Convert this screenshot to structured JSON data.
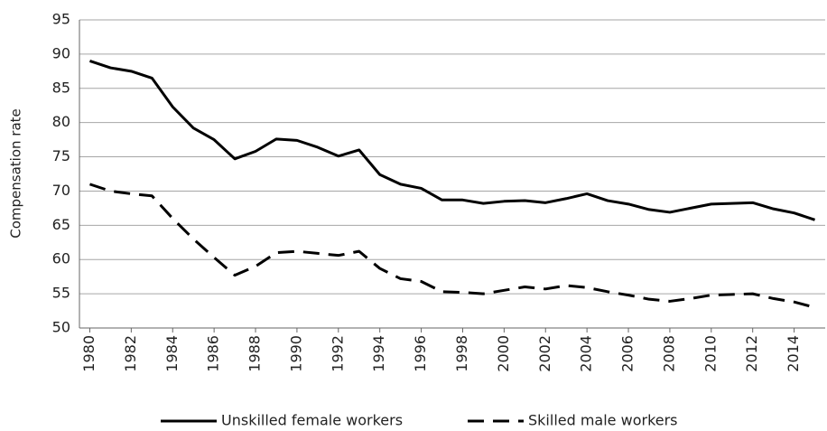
{
  "chart_data": {
    "type": "line",
    "y_label": "Compensation rate",
    "x": [
      1980,
      1981,
      1982,
      1983,
      1984,
      1985,
      1986,
      1987,
      1988,
      1989,
      1990,
      1991,
      1992,
      1993,
      1994,
      1995,
      1996,
      1997,
      1998,
      1999,
      2000,
      2001,
      2002,
      2003,
      2004,
      2005,
      2006,
      2007,
      2008,
      2009,
      2010,
      2011,
      2012,
      2013,
      2014,
      2015
    ],
    "series": [
      {
        "name": "Unskilled female workers",
        "color": "#000000",
        "style": "solid",
        "values": [
          89.0,
          88.0,
          87.5,
          86.5,
          82.3,
          79.2,
          77.5,
          74.7,
          75.8,
          77.6,
          77.4,
          76.4,
          75.1,
          76.0,
          72.4,
          71.0,
          70.4,
          68.7,
          68.7,
          68.2,
          68.5,
          68.6,
          68.3,
          68.9,
          69.6,
          68.6,
          68.1,
          67.3,
          66.9,
          67.5,
          68.1,
          68.2,
          68.3,
          67.4,
          66.8,
          65.8
        ]
      },
      {
        "name": "Skilled male workers",
        "color": "#000000",
        "style": "dashed",
        "values": [
          71.0,
          70.0,
          69.6,
          69.3,
          66.0,
          63.0,
          60.3,
          57.7,
          59.0,
          61.0,
          61.2,
          60.9,
          60.6,
          61.2,
          58.7,
          57.2,
          56.8,
          55.3,
          55.2,
          55.0,
          55.5,
          56.0,
          55.7,
          56.2,
          55.9,
          55.3,
          54.8,
          54.2,
          53.9,
          54.3,
          54.8,
          54.9,
          55.0,
          54.3,
          53.8,
          53.0
        ]
      }
    ],
    "xlim": [
      1979.5,
      2015.5
    ],
    "xticks": [
      1980,
      1982,
      1984,
      1986,
      1988,
      1990,
      1992,
      1994,
      1996,
      1998,
      2000,
      2002,
      2004,
      2006,
      2008,
      2010,
      2012,
      2014
    ],
    "ylim": [
      50,
      95
    ],
    "yticks": [
      50,
      55,
      60,
      65,
      70,
      75,
      80,
      85,
      90,
      95
    ],
    "grid": true,
    "legend": "bottom"
  }
}
